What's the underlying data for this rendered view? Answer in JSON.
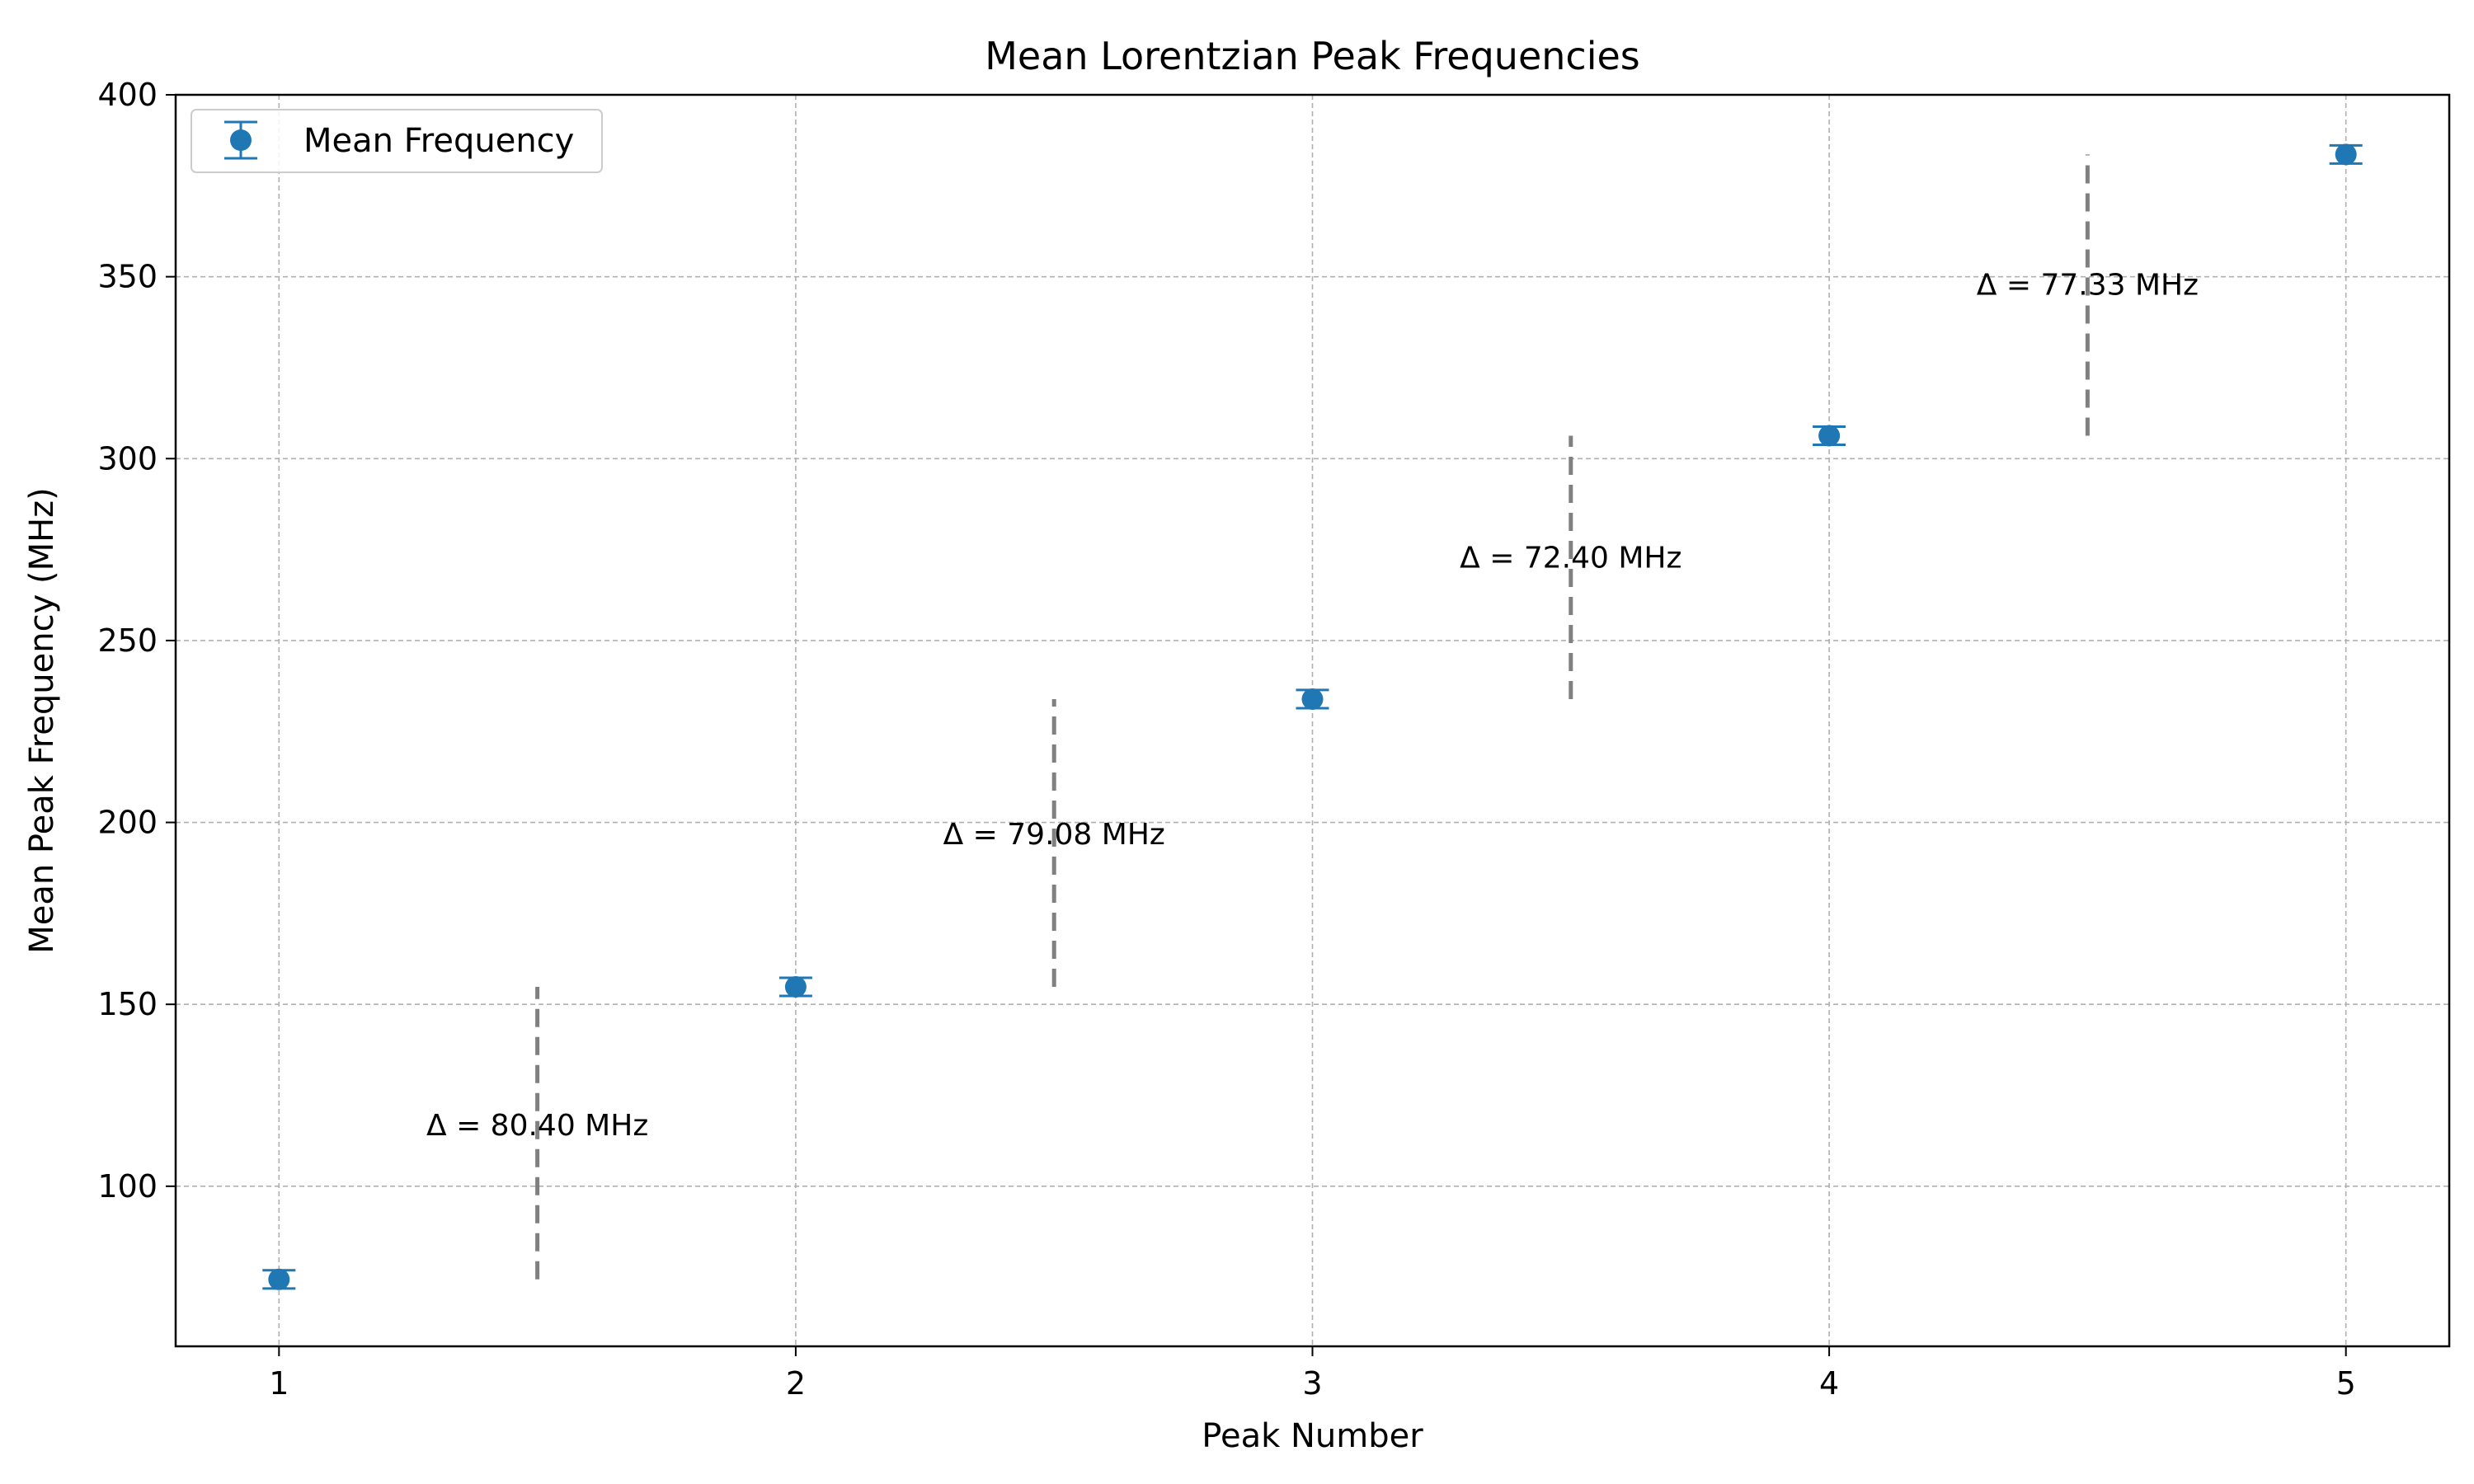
{
  "chart_data": {
    "type": "scatter",
    "title": "Mean Lorentzian Peak Frequencies",
    "xlabel": "Peak Number",
    "ylabel": "Mean Peak Frequency (MHz)",
    "xlim": [
      0.8,
      5.2
    ],
    "ylim": [
      56,
      400
    ],
    "xticks": [
      1,
      2,
      3,
      4,
      5
    ],
    "yticks": [
      100,
      150,
      200,
      250,
      300,
      350,
      400
    ],
    "grid": true,
    "legend_position": "top-left",
    "series": [
      {
        "name": "Mean Frequency",
        "color": "#1f77b4",
        "marker": "circle",
        "x": [
          1,
          2,
          3,
          4,
          5
        ],
        "y": [
          74.4,
          154.8,
          233.9,
          306.3,
          383.6
        ],
        "yerr": [
          2.5,
          2.5,
          2.5,
          2.5,
          2.5
        ]
      }
    ],
    "annotations": [
      {
        "text": "Δ = 80.40 MHz",
        "x": 1.5,
        "y_text": 117,
        "y_start": 74.4,
        "y_end": 154.8
      },
      {
        "text": "Δ = 79.08 MHz",
        "x": 2.5,
        "y_text": 197,
        "y_start": 154.8,
        "y_end": 233.9
      },
      {
        "text": "Δ = 72.40 MHz",
        "x": 3.5,
        "y_text": 273,
        "y_start": 233.9,
        "y_end": 306.3
      },
      {
        "text": "Δ = 77.33 MHz",
        "x": 4.5,
        "y_text": 348,
        "y_start": 306.3,
        "y_end": 383.6
      }
    ],
    "annotation_line_color": "#808080",
    "grid_color": "#b0b0b0"
  }
}
